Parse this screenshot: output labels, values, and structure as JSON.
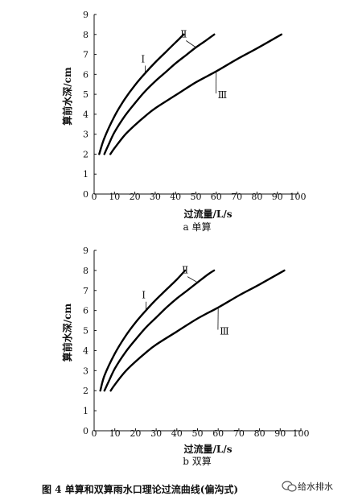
{
  "chart_data": [
    {
      "type": "line",
      "subtitle": "a 单算",
      "xlabel": "过流量/L/s",
      "ylabel": "算前水深/cm",
      "xlim": [
        0,
        100
      ],
      "ylim": [
        0,
        9
      ],
      "xticks": [
        0,
        10,
        20,
        30,
        40,
        50,
        60,
        70,
        80,
        90,
        100
      ],
      "yticks": [
        0,
        1,
        2,
        3,
        4,
        5,
        6,
        7,
        8,
        9
      ],
      "grid": false,
      "series": [
        {
          "name": "Ⅰ",
          "x": [
            2.5,
            5,
            10,
            15,
            20,
            25,
            30,
            35,
            40,
            44
          ],
          "y": [
            2.0,
            2.8,
            3.9,
            4.75,
            5.45,
            6.05,
            6.6,
            7.1,
            7.6,
            8.0
          ]
        },
        {
          "name": "Ⅱ",
          "x": [
            5,
            7,
            10,
            15,
            20,
            25,
            30,
            35,
            40,
            45,
            50,
            55,
            59
          ],
          "y": [
            2.0,
            2.45,
            3.1,
            3.9,
            4.55,
            5.15,
            5.65,
            6.1,
            6.55,
            6.95,
            7.35,
            7.7,
            8.0
          ]
        },
        {
          "name": "Ⅲ",
          "x": [
            8,
            10,
            15,
            20,
            25,
            30,
            40,
            50,
            60,
            70,
            80,
            92
          ],
          "y": [
            2.0,
            2.3,
            2.95,
            3.45,
            3.9,
            4.3,
            4.95,
            5.6,
            6.15,
            6.75,
            7.3,
            8.0
          ]
        }
      ]
    },
    {
      "type": "line",
      "subtitle": "b 双算",
      "xlabel": "过流量/L/s",
      "ylabel": "算前水深/cm",
      "xlim": [
        0,
        100
      ],
      "ylim": [
        0,
        9
      ],
      "xticks": [
        0,
        10,
        20,
        30,
        40,
        50,
        60,
        70,
        80,
        90,
        100
      ],
      "yticks": [
        0,
        1,
        2,
        3,
        4,
        5,
        6,
        7,
        8,
        9
      ],
      "grid": false,
      "series": [
        {
          "name": "Ⅰ",
          "x": [
            3,
            5,
            10,
            15,
            20,
            25,
            30,
            35,
            40,
            44
          ],
          "y": [
            2.0,
            2.75,
            3.85,
            4.7,
            5.4,
            6.0,
            6.55,
            7.05,
            7.55,
            8.0
          ]
        },
        {
          "name": "Ⅱ",
          "x": [
            5,
            7,
            10,
            15,
            20,
            25,
            30,
            35,
            40,
            45,
            50,
            55,
            58
          ],
          "y": [
            2.0,
            2.45,
            3.1,
            3.9,
            4.55,
            5.15,
            5.65,
            6.15,
            6.6,
            7.0,
            7.4,
            7.8,
            8.0
          ]
        },
        {
          "name": "Ⅲ",
          "x": [
            8,
            10,
            15,
            20,
            25,
            30,
            40,
            50,
            60,
            70,
            80,
            92
          ],
          "y": [
            2.0,
            2.3,
            2.95,
            3.45,
            3.9,
            4.3,
            4.95,
            5.6,
            6.15,
            6.75,
            7.3,
            8.0
          ]
        }
      ]
    }
  ],
  "caption": "图 4   单算和双算雨水口理论过流曲线(偏沟式)",
  "watermark": "给水排水"
}
